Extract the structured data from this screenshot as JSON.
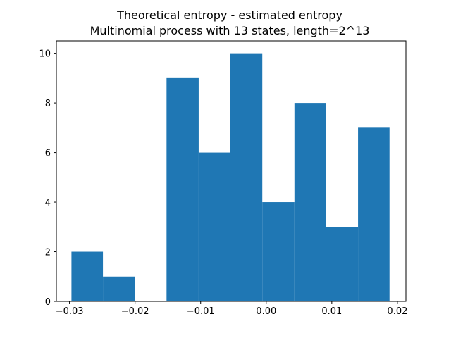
{
  "chart_data": {
    "type": "bar",
    "title_lines": [
      "Theoretical entropy - estimated entropy",
      "Multinomial process with 13 states, length=2^13"
    ],
    "xlabel": "",
    "ylabel": "",
    "bins": [
      {
        "x0": -0.0297,
        "x1": -0.0249,
        "count": 2
      },
      {
        "x0": -0.0249,
        "x1": -0.02,
        "count": 1
      },
      {
        "x0": -0.02,
        "x1": -0.0152,
        "count": 0
      },
      {
        "x0": -0.0152,
        "x1": -0.0103,
        "count": 9
      },
      {
        "x0": -0.0103,
        "x1": -0.0055,
        "count": 6
      },
      {
        "x0": -0.0055,
        "x1": -0.0006,
        "count": 10
      },
      {
        "x0": -0.0006,
        "x1": 0.0043,
        "count": 4
      },
      {
        "x0": 0.0043,
        "x1": 0.0091,
        "count": 8
      },
      {
        "x0": 0.0091,
        "x1": 0.014,
        "count": 3
      },
      {
        "x0": 0.014,
        "x1": 0.0188,
        "count": 7
      }
    ],
    "xlim": [
      -0.032,
      0.0213
    ],
    "ylim": [
      0,
      10.5
    ],
    "xticks": [
      {
        "value": -0.03,
        "label": "−0.03"
      },
      {
        "value": -0.02,
        "label": "−0.02"
      },
      {
        "value": -0.01,
        "label": "−0.01"
      },
      {
        "value": 0.0,
        "label": "0.00"
      },
      {
        "value": 0.01,
        "label": "0.01"
      },
      {
        "value": 0.02,
        "label": "0.02"
      }
    ],
    "yticks": [
      {
        "value": 0,
        "label": "0"
      },
      {
        "value": 2,
        "label": "2"
      },
      {
        "value": 4,
        "label": "4"
      },
      {
        "value": 6,
        "label": "6"
      },
      {
        "value": 8,
        "label": "8"
      },
      {
        "value": 10,
        "label": "10"
      }
    ],
    "bar_color": "#1f77b4",
    "grid": false,
    "legend": "none"
  }
}
